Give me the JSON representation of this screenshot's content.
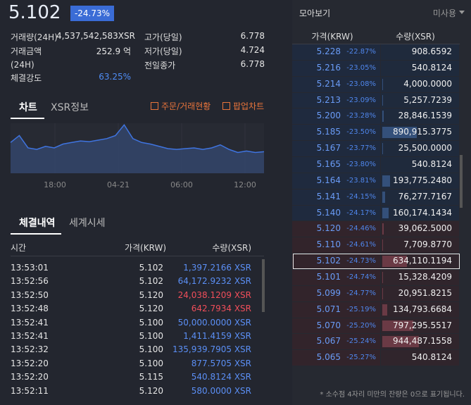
{
  "summary": {
    "price": "5.102",
    "change": "-24.73%",
    "stats_left": [
      {
        "label": "거래량(24H)",
        "value": "4,537,542,583XSR"
      },
      {
        "label": "거래금액 (24H)",
        "value": "252.9 억"
      },
      {
        "label": "체결강도",
        "value": "63.25%"
      }
    ],
    "stats_right": [
      {
        "label": "고가(당일)",
        "value": "6.778"
      },
      {
        "label": "저가(당일)",
        "value": "4.724"
      },
      {
        "label": "전일종가",
        "value": "6.778"
      }
    ]
  },
  "chart_tabs": [
    "차트",
    "XSR정보"
  ],
  "chart_links": [
    "주문/거래현황",
    "팝업차트"
  ],
  "mini_chart": {
    "type": "area",
    "x_labels": [
      "18:00",
      "04-21",
      "06:00",
      "12:00"
    ],
    "values": [
      5.331,
      5.428,
      5.255,
      5.234,
      5.277,
      5.255,
      5.309,
      5.331,
      5.352,
      5.342,
      5.363,
      5.385,
      5.428,
      5.578,
      5.385,
      5.331,
      5.309,
      5.277,
      5.245,
      5.234,
      5.245,
      5.255,
      5.234,
      5.255,
      5.298,
      5.234,
      5.191,
      5.212,
      5.191,
      5.202
    ],
    "ylim": [
      4.9,
      5.6
    ],
    "color": "#3f74e0"
  },
  "trade_tabs": [
    "체결내역",
    "세계시세"
  ],
  "trades": {
    "columns": [
      "시간",
      "가격(KRW)",
      "수량(XSR)"
    ],
    "rows": [
      {
        "time": "13:53:01",
        "price": "5.102",
        "quantity": "1,397.2166 XSR",
        "color": "#5b8ff5"
      },
      {
        "time": "13:52:56",
        "price": "5.102",
        "quantity": "64,172.9232 XSR",
        "color": "#5b8ff5"
      },
      {
        "time": "13:52:50",
        "price": "5.120",
        "quantity": "24,038.1209 XSR",
        "color": "#f04e5a"
      },
      {
        "time": "13:52:48",
        "price": "5.120",
        "quantity": "642.7934 XSR",
        "color": "#f04e5a"
      },
      {
        "time": "13:52:41",
        "price": "5.100",
        "quantity": "50,000.0000 XSR",
        "color": "#5b8ff5"
      },
      {
        "time": "13:52:41",
        "price": "5.100",
        "quantity": "1,411.4159 XSR",
        "color": "#5b8ff5"
      },
      {
        "time": "13:52:32",
        "price": "5.100",
        "quantity": "135,939.7905 XSR",
        "color": "#5b8ff5"
      },
      {
        "time": "13:52:20",
        "price": "5.100",
        "quantity": "877.5705 XSR",
        "color": "#5b8ff5"
      },
      {
        "time": "13:52:20",
        "price": "5.115",
        "quantity": "540.8124 XSR",
        "color": "#5b8ff5"
      },
      {
        "time": "13:52:11",
        "price": "5.120",
        "quantity": "580.0000 XSR",
        "color": "#5b8ff5"
      }
    ]
  },
  "orderbook": {
    "title": "모아보기",
    "mode": "미사용",
    "columns": [
      "가격(KRW)",
      "수량(XSR)"
    ],
    "selected_index": 13,
    "asks": {
      "color": "#1f2a3e",
      "prices": [
        "5.228",
        "5.216",
        "5.214",
        "5.213",
        "5.200",
        "5.185",
        "5.167",
        "5.165",
        "5.164",
        "5.141",
        "5.140"
      ],
      "changes": [
        "-22.87%",
        "-23.05%",
        "-23.08%",
        "-23.09%",
        "-23.28%",
        "-23.50%",
        "-23.77%",
        "-23.80%",
        "-23.81%",
        "-24.15%",
        "-24.17%"
      ],
      "quantities": [
        908.6592,
        540.8124,
        4000,
        5257.7239,
        28846.1539,
        890915.3775,
        25500,
        540.8124,
        193775.248,
        76277.7167,
        160174.1434
      ],
      "quantity_labels": [
        "908.6592",
        "540.8124",
        "4,000.0000",
        "5,257.7239",
        "28,846.1539",
        "890,915.3775",
        "25,500.0000",
        "540.8124",
        "193,775.2480",
        "76,277.7167",
        "160,174.1434"
      ]
    },
    "bids": {
      "color": "#32242b",
      "prices": [
        "5.120",
        "5.110",
        "5.102",
        "5.101",
        "5.099",
        "5.071",
        "5.070",
        "5.067",
        "5.065"
      ],
      "changes": [
        "-24.46%",
        "-24.61%",
        "-24.73%",
        "-24.74%",
        "-24.77%",
        "-25.19%",
        "-25.20%",
        "-25.24%",
        "-25.27%"
      ],
      "quantities": [
        39062.5,
        7709.877,
        634110.1194,
        15328.4209,
        20951.8215,
        134793.6684,
        797295.5517,
        944487.1558,
        540.8124
      ],
      "quantity_labels": [
        "39,062.5000",
        "7,709.8770",
        "634,110.1194",
        "15,328.4209",
        "20,951.8215",
        "134,793.6684",
        "797,295.5517",
        "944,487.1558",
        "540.8124"
      ]
    },
    "note": "* 소수점 4자리 미만의 잔량은 0으로 표기됩니다."
  }
}
